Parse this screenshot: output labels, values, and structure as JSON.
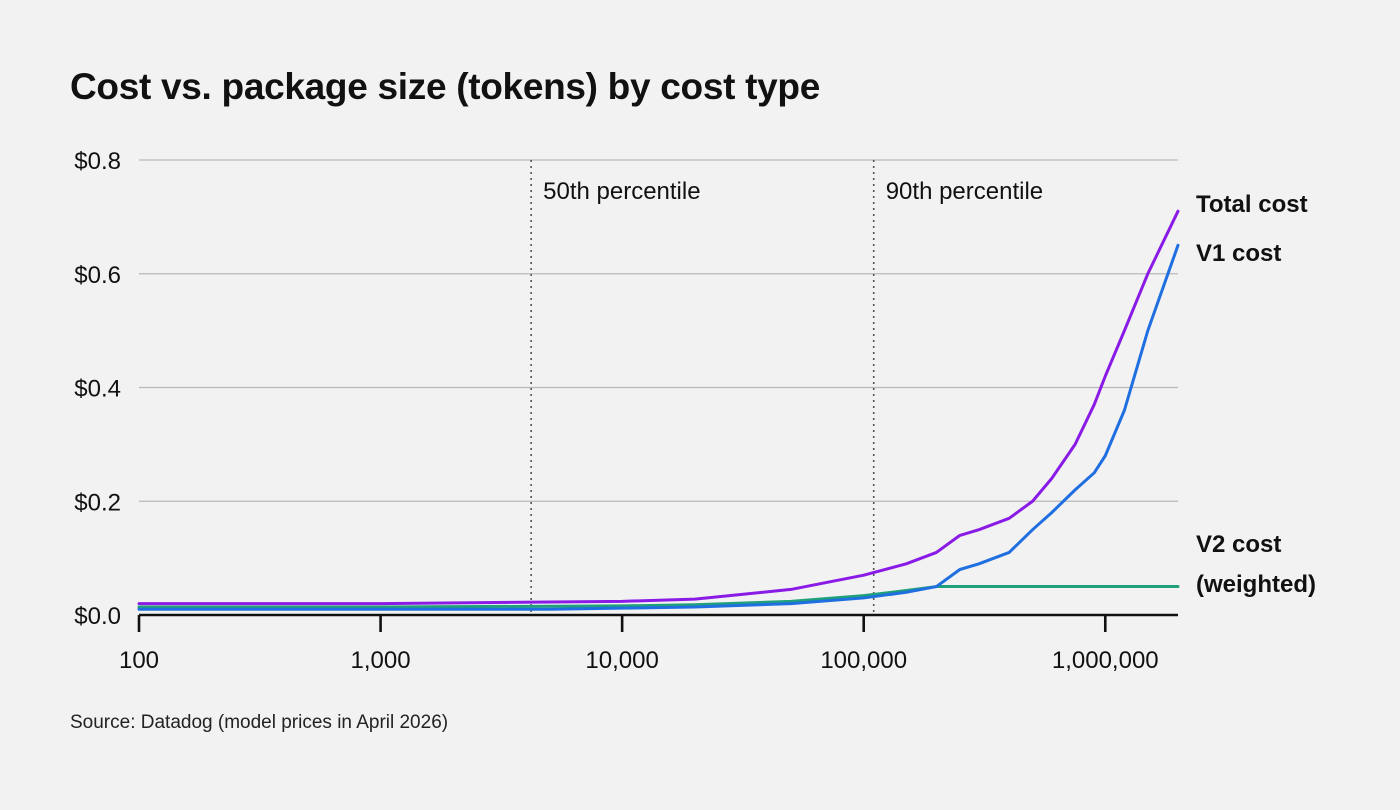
{
  "chart_data": {
    "type": "line",
    "title": "Cost vs. package size (tokens) by cost type",
    "source": "Source: Datadog (model prices in April 2026)",
    "x_scale": "log",
    "xlim": [
      100,
      2000000
    ],
    "ylim": [
      0,
      0.8
    ],
    "grid": true,
    "y_ticks": [
      {
        "value": 0,
        "label": "$0.0"
      },
      {
        "value": 0.2,
        "label": "$0.2"
      },
      {
        "value": 0.4,
        "label": "$0.4"
      },
      {
        "value": 0.6,
        "label": "$0.6"
      },
      {
        "value": 0.8,
        "label": "$0.8"
      }
    ],
    "x_ticks": [
      {
        "value": 100,
        "label": "100"
      },
      {
        "value": 1000,
        "label": "1,000"
      },
      {
        "value": 10000,
        "label": "10,000"
      },
      {
        "value": 100000,
        "label": "100,000"
      },
      {
        "value": 1000000,
        "label": "1,000,000"
      }
    ],
    "annotations": [
      {
        "x": 4200,
        "label": "50th percentile"
      },
      {
        "x": 110000,
        "label": "90th percentile"
      }
    ],
    "series": [
      {
        "name": "Total cost",
        "color": "#8a1be6",
        "points": [
          [
            100,
            0.02
          ],
          [
            1000,
            0.02
          ],
          [
            3000,
            0.022
          ],
          [
            10000,
            0.024
          ],
          [
            20000,
            0.028
          ],
          [
            50000,
            0.045
          ],
          [
            100000,
            0.07
          ],
          [
            150000,
            0.09
          ],
          [
            200000,
            0.11
          ],
          [
            250000,
            0.14
          ],
          [
            300000,
            0.15
          ],
          [
            400000,
            0.17
          ],
          [
            500000,
            0.2
          ],
          [
            600000,
            0.24
          ],
          [
            750000,
            0.3
          ],
          [
            900000,
            0.37
          ],
          [
            1000000,
            0.42
          ],
          [
            1200000,
            0.5
          ],
          [
            1500000,
            0.6
          ],
          [
            2000000,
            0.71
          ]
        ]
      },
      {
        "name": "V1 cost",
        "color": "#1f6fe0",
        "points": [
          [
            100,
            0.01
          ],
          [
            1000,
            0.01
          ],
          [
            5000,
            0.01
          ],
          [
            10000,
            0.012
          ],
          [
            20000,
            0.014
          ],
          [
            50000,
            0.02
          ],
          [
            100000,
            0.03
          ],
          [
            150000,
            0.04
          ],
          [
            200000,
            0.05
          ],
          [
            250000,
            0.08
          ],
          [
            300000,
            0.09
          ],
          [
            400000,
            0.11
          ],
          [
            500000,
            0.15
          ],
          [
            600000,
            0.18
          ],
          [
            750000,
            0.22
          ],
          [
            900000,
            0.25
          ],
          [
            1000000,
            0.28
          ],
          [
            1200000,
            0.36
          ],
          [
            1500000,
            0.5
          ],
          [
            2000000,
            0.65
          ]
        ]
      },
      {
        "name": "V2 cost (weighted)",
        "label_lines": [
          "V2 cost",
          "(weighted)"
        ],
        "color": "#1fa07a",
        "points": [
          [
            100,
            0.014
          ],
          [
            1000,
            0.014
          ],
          [
            10000,
            0.016
          ],
          [
            20000,
            0.018
          ],
          [
            50000,
            0.024
          ],
          [
            100000,
            0.034
          ],
          [
            150000,
            0.043
          ],
          [
            200000,
            0.05
          ],
          [
            500000,
            0.05
          ],
          [
            1000000,
            0.05
          ],
          [
            2000000,
            0.05
          ]
        ]
      }
    ]
  }
}
